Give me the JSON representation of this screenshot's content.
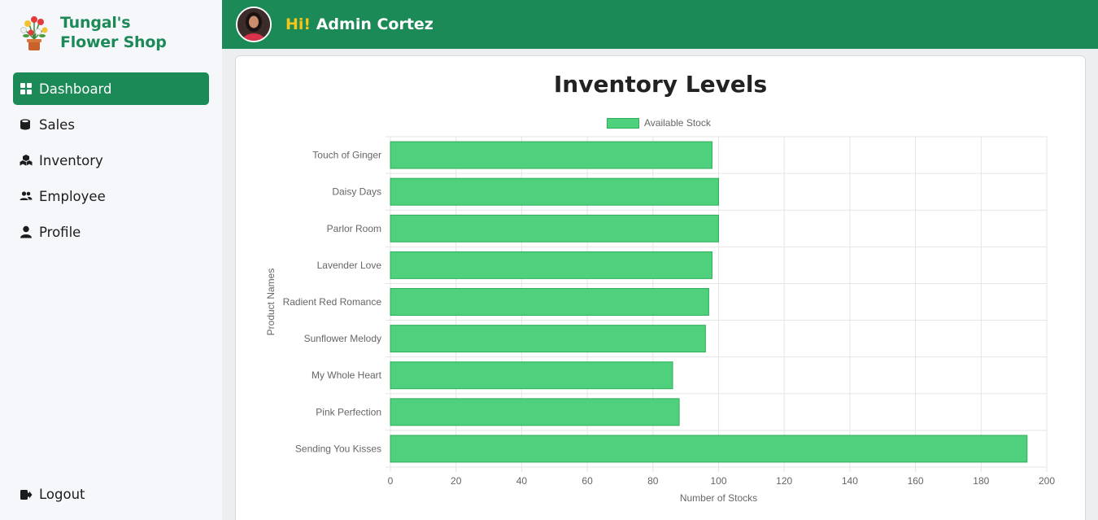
{
  "brand": {
    "line1": "Tungal's",
    "line2": "Flower Shop"
  },
  "nav": [
    {
      "label": "Dashboard",
      "icon": "grid-icon",
      "active": true
    },
    {
      "label": "Sales",
      "icon": "coins-icon",
      "active": false
    },
    {
      "label": "Inventory",
      "icon": "boxes-icon",
      "active": false
    },
    {
      "label": "Employee",
      "icon": "users-icon",
      "active": false
    },
    {
      "label": "Profile",
      "icon": "user-icon",
      "active": false
    }
  ],
  "logout": {
    "label": "Logout"
  },
  "header": {
    "hi": "Hi!",
    "name": "Admin Cortez"
  },
  "colors": {
    "brand": "#1b8a57",
    "accent": "#f5c518",
    "bar": "#4fd07c",
    "bar_border": "#2fae5a"
  },
  "chart_data": {
    "type": "bar",
    "orientation": "horizontal",
    "title": "Inventory Levels",
    "legend": "Available Stock",
    "xlabel": "Number of Stocks",
    "ylabel": "Product Names",
    "categories": [
      "Touch of Ginger",
      "Daisy Days",
      "Parlor Room",
      "Lavender Love",
      "Radient Red Romance",
      "Sunflower Melody",
      "My Whole Heart",
      "Pink Perfection",
      "Sending You Kisses"
    ],
    "values": [
      98,
      100,
      100,
      98,
      97,
      96,
      86,
      88,
      194
    ],
    "xlim": [
      0,
      200
    ],
    "xticks": [
      0,
      20,
      40,
      60,
      80,
      100,
      120,
      140,
      160,
      180,
      200
    ]
  }
}
